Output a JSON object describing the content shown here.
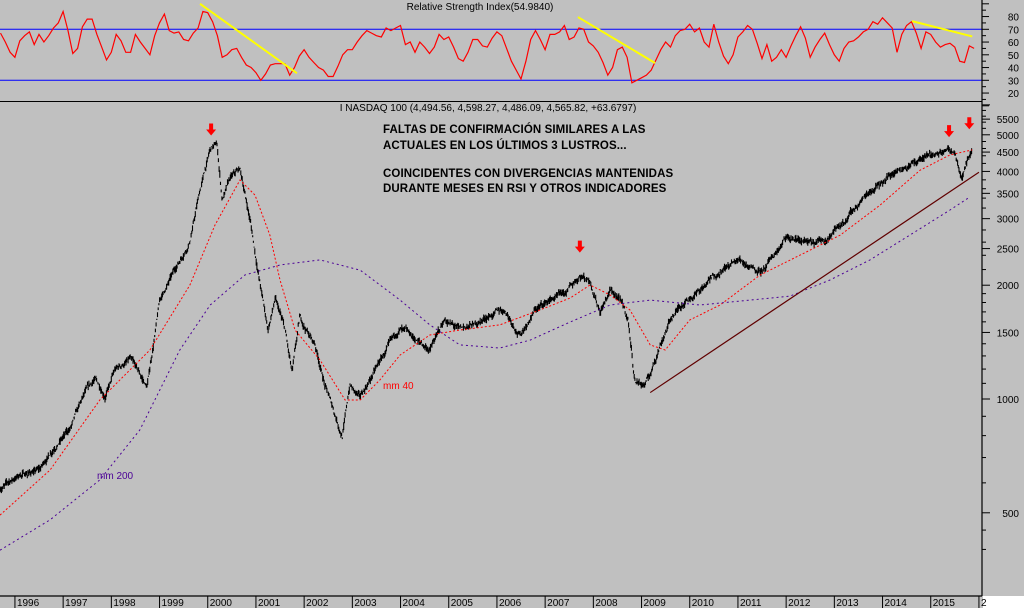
{
  "chart_data": [
    {
      "type": "line",
      "panel": "rsi",
      "title": "Relative Strength Index(54.9840)",
      "ylim": [
        15,
        87
      ],
      "yticks": [
        20,
        30,
        40,
        50,
        60,
        70,
        80
      ],
      "reference_lines": [
        70,
        30
      ],
      "colors": {
        "series": "#ff0000",
        "reference": "#0000ff",
        "trend": "#ffff00"
      },
      "series": {
        "name": "RSI",
        "start_year": 1995.7,
        "step_years": 0.1,
        "values": [
          67,
          60,
          52,
          48,
          61,
          65,
          68,
          58,
          66,
          60,
          65,
          71,
          75,
          84,
          69,
          51,
          55,
          72,
          78,
          78,
          66,
          56,
          46,
          52,
          66,
          61,
          52,
          52,
          66,
          60,
          55,
          50,
          65,
          75,
          82,
          69,
          67,
          68,
          62,
          61,
          67,
          71,
          84,
          83,
          76,
          65,
          48,
          50,
          54,
          55,
          48,
          42,
          40,
          36,
          30,
          35,
          42,
          43,
          43,
          43,
          34,
          40,
          49,
          54,
          48,
          44,
          40,
          38,
          33,
          33,
          41,
          50,
          54,
          54,
          60,
          65,
          69,
          67,
          65,
          64,
          71,
          69,
          71,
          73,
          58,
          60,
          52,
          60,
          56,
          51,
          56,
          66,
          62,
          64,
          56,
          47,
          45,
          52,
          62,
          62,
          57,
          56,
          63,
          68,
          65,
          55,
          45,
          38,
          31,
          45,
          62,
          69,
          62,
          54,
          66,
          66,
          68,
          73,
          62,
          64,
          71,
          70,
          60,
          57,
          52,
          44,
          34,
          40,
          54,
          56,
          48,
          28,
          30,
          32,
          34,
          38,
          46,
          54,
          60,
          56,
          65,
          69,
          70,
          74,
          68,
          71,
          60,
          56,
          74,
          60,
          49,
          43,
          50,
          64,
          68,
          73,
          70,
          59,
          47,
          58,
          45,
          48,
          54,
          48,
          57,
          65,
          72,
          63,
          48,
          56,
          62,
          67,
          58,
          50,
          45,
          55,
          60,
          61,
          64,
          68,
          70,
          76,
          74,
          79,
          75,
          71,
          52,
          66,
          73,
          76,
          67,
          55,
          68,
          66,
          60,
          56,
          58,
          59,
          56,
          45,
          44,
          57,
          55
        ]
      },
      "trendlines": [
        {
          "from": [
            1999.84,
            90
          ],
          "to": [
            2001.85,
            35.6
          ]
        },
        {
          "from": [
            2007.68,
            79.6
          ],
          "to": [
            2009.28,
            43.6
          ]
        },
        {
          "from": [
            2014.61,
            76.4
          ],
          "to": [
            2015.86,
            64.4
          ]
        }
      ]
    },
    {
      "type": "line",
      "panel": "price",
      "title": "I NASDAQ 100 (4,494.56, 4,598.27, 4,486.09, 4,565.82, +63.6797)",
      "yscale": "log",
      "ylim": [
        330,
        6200
      ],
      "yticks": [
        500,
        1000,
        1500,
        2000,
        2500,
        3000,
        3500,
        4000,
        4500,
        5000,
        5500
      ],
      "xlim": [
        1995.69,
        2016.1
      ],
      "xticks": [
        "1996",
        "1997",
        "1998",
        "1999",
        "2000",
        "2001",
        "2002",
        "2003",
        "2004",
        "2005",
        "2006",
        "2007",
        "2008",
        "2009",
        "2010",
        "2011",
        "2012",
        "2013",
        "2014",
        "2015",
        "2"
      ],
      "colors": {
        "price": "#000000",
        "mm40": "#ff0000",
        "mm200": "#4b0096",
        "trend": "#600000",
        "arrows": "#ff0000"
      },
      "price": [
        [
          1995.69,
          580
        ],
        [
          1996.1,
          630
        ],
        [
          1996.52,
          650
        ],
        [
          1996.83,
          755
        ],
        [
          1997.14,
          830
        ],
        [
          1997.45,
          1025
        ],
        [
          1997.66,
          1120
        ],
        [
          1997.87,
          1025
        ],
        [
          1998.08,
          1190
        ],
        [
          1998.39,
          1270
        ],
        [
          1998.74,
          1070
        ],
        [
          1999.01,
          1830
        ],
        [
          1999.32,
          2190
        ],
        [
          1999.63,
          2630
        ],
        [
          1999.84,
          3570
        ],
        [
          2000.05,
          4560
        ],
        [
          2000.19,
          4700
        ],
        [
          2000.3,
          3360
        ],
        [
          2000.46,
          3800
        ],
        [
          2000.67,
          4030
        ],
        [
          2000.88,
          2970
        ],
        [
          2001.04,
          2190
        ],
        [
          2001.25,
          1520
        ],
        [
          2001.4,
          1830
        ],
        [
          2001.6,
          1520
        ],
        [
          2001.75,
          1160
        ],
        [
          2001.91,
          1620
        ],
        [
          2002.23,
          1390
        ],
        [
          2002.43,
          1090
        ],
        [
          2002.64,
          910
        ],
        [
          2002.79,
          800
        ],
        [
          2002.95,
          1090
        ],
        [
          2003.16,
          1000
        ],
        [
          2003.47,
          1190
        ],
        [
          2003.78,
          1390
        ],
        [
          2003.99,
          1520
        ],
        [
          2004.3,
          1430
        ],
        [
          2004.61,
          1350
        ],
        [
          2004.92,
          1620
        ],
        [
          2005.23,
          1520
        ],
        [
          2005.54,
          1570
        ],
        [
          2005.86,
          1670
        ],
        [
          2006.17,
          1720
        ],
        [
          2006.48,
          1480
        ],
        [
          2006.79,
          1720
        ],
        [
          2007.1,
          1830
        ],
        [
          2007.41,
          1880
        ],
        [
          2007.72,
          2130
        ],
        [
          2007.93,
          2070
        ],
        [
          2008.14,
          1720
        ],
        [
          2008.35,
          1940
        ],
        [
          2008.55,
          1830
        ],
        [
          2008.72,
          1620
        ],
        [
          2008.86,
          1120
        ],
        [
          2009.07,
          1090
        ],
        [
          2009.18,
          1160
        ],
        [
          2009.38,
          1390
        ],
        [
          2009.59,
          1620
        ],
        [
          2009.9,
          1830
        ],
        [
          2010.21,
          1940
        ],
        [
          2010.63,
          2190
        ],
        [
          2011.04,
          2330
        ],
        [
          2011.25,
          2260
        ],
        [
          2011.56,
          2190
        ],
        [
          2011.98,
          2630
        ],
        [
          2012.29,
          2630
        ],
        [
          2012.6,
          2550
        ],
        [
          2012.91,
          2710
        ],
        [
          2013.32,
          3070
        ],
        [
          2013.74,
          3570
        ],
        [
          2014.15,
          3920
        ],
        [
          2014.47,
          4160
        ],
        [
          2014.78,
          4290
        ],
        [
          2015.09,
          4420
        ],
        [
          2015.36,
          4560
        ],
        [
          2015.5,
          4560
        ],
        [
          2015.65,
          3920
        ],
        [
          2015.77,
          4420
        ],
        [
          2015.86,
          4566
        ]
      ],
      "mm40": {
        "label": "mm 40",
        "points": [
          [
            1995.69,
            493
          ],
          [
            1996.73,
            649
          ],
          [
            1997.76,
            994
          ],
          [
            1998.8,
            1348
          ],
          [
            1999.63,
            2002
          ],
          [
            2000.15,
            2886
          ],
          [
            2000.67,
            3796
          ],
          [
            2000.98,
            3463
          ],
          [
            2001.29,
            2713
          ],
          [
            2001.5,
            2064
          ],
          [
            2001.81,
            1522
          ],
          [
            2002.33,
            1268
          ],
          [
            2002.85,
            994
          ],
          [
            2003.16,
            994
          ],
          [
            2003.57,
            1123
          ],
          [
            2003.99,
            1307
          ],
          [
            2004.61,
            1477
          ],
          [
            2005.23,
            1522
          ],
          [
            2006.06,
            1570
          ],
          [
            2006.89,
            1720
          ],
          [
            2007.52,
            1850
          ],
          [
            2007.93,
            2002
          ],
          [
            2008.35,
            1884
          ],
          [
            2008.76,
            1720
          ],
          [
            2009.18,
            1390
          ],
          [
            2009.49,
            1348
          ],
          [
            2010.0,
            1618
          ],
          [
            2010.63,
            1773
          ],
          [
            2011.46,
            2128
          ],
          [
            2012.29,
            2402
          ],
          [
            2013.12,
            2713
          ],
          [
            2013.95,
            3259
          ],
          [
            2014.78,
            4030
          ],
          [
            2015.4,
            4423
          ],
          [
            2015.86,
            4560
          ]
        ]
      },
      "mm200": {
        "label": "mm 200",
        "points": [
          [
            1995.69,
            398
          ],
          [
            1996.73,
            479
          ],
          [
            1997.76,
            611
          ],
          [
            1998.59,
            828
          ],
          [
            1999.42,
            1348
          ],
          [
            2000.05,
            1773
          ],
          [
            2000.77,
            2128
          ],
          [
            2001.5,
            2262
          ],
          [
            2002.33,
            2333
          ],
          [
            2003.16,
            2193
          ],
          [
            2003.99,
            1827
          ],
          [
            2004.61,
            1570
          ],
          [
            2005.23,
            1390
          ],
          [
            2006.06,
            1364
          ],
          [
            2006.69,
            1432
          ],
          [
            2007.52,
            1598
          ],
          [
            2008.35,
            1773
          ],
          [
            2009.18,
            1827
          ],
          [
            2010.21,
            1773
          ],
          [
            2011.25,
            1827
          ],
          [
            2012.08,
            1872
          ],
          [
            2012.91,
            2064
          ],
          [
            2013.74,
            2333
          ],
          [
            2014.57,
            2716
          ],
          [
            2015.4,
            3162
          ],
          [
            2015.81,
            3422
          ]
        ]
      },
      "trendline": {
        "from": [
          2009.18,
          1040
        ],
        "to": [
          2016.0,
          3980
        ]
      },
      "arrows": [
        [
          2000.07,
          5100
        ],
        [
          2007.72,
          2500
        ],
        [
          2015.38,
          5050
        ],
        [
          2015.8,
          5300
        ]
      ],
      "annotations": [
        "FALTAS DE CONFIRMACIÓN SIMILARES A LAS",
        "ACTUALES EN LOS ÚLTIMOS 3 LUSTROS...",
        "COINCIDENTES CON DIVERGENCIAS MANTENIDAS",
        "DURANTE MESES EN RSI Y OTROS INDICADORES"
      ]
    }
  ]
}
